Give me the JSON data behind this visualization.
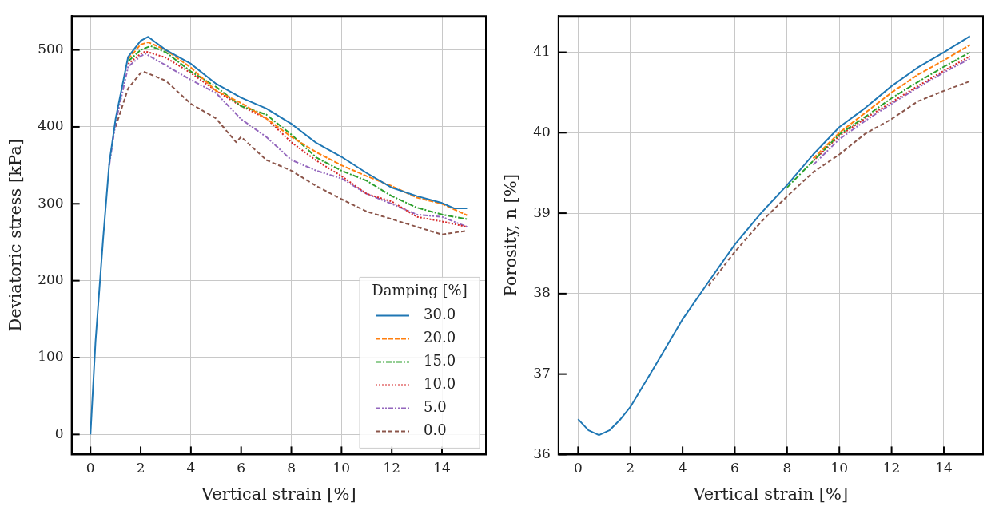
{
  "chart_data": [
    {
      "type": "line",
      "xlabel": "Vertical strain [%]",
      "ylabel": "Deviatoric stress [kPa]",
      "legend_title": "Damping [%]",
      "legend": "bottom right",
      "grid": true,
      "marker": "none",
      "xlim": [
        -0.75,
        15.75
      ],
      "ylim": [
        -26,
        544
      ],
      "xticks": [
        0,
        2,
        4,
        6,
        8,
        10,
        12,
        14
      ],
      "yticks": [
        0,
        100,
        200,
        300,
        400,
        500
      ],
      "series": [
        {
          "name": "30.0",
          "color": "#1f77b4",
          "line_style": "solid",
          "x": [
            0,
            0.2,
            0.5,
            0.75,
            1,
            1.5,
            2,
            2.3,
            3,
            4,
            5,
            6,
            7,
            8,
            9,
            10,
            11,
            12,
            13,
            14,
            14.5,
            15
          ],
          "values": [
            0,
            120,
            253,
            353,
            410,
            491,
            512,
            517,
            500,
            482,
            456,
            438,
            424,
            404,
            379,
            361,
            340,
            321,
            310,
            301,
            294,
            294
          ]
        },
        {
          "name": "20.0",
          "color": "#ff7f0e",
          "line_style": "dashed",
          "x": [
            1.5,
            2,
            2.3,
            3,
            4,
            5,
            6,
            7,
            8,
            9,
            10,
            11,
            12,
            13,
            14,
            15
          ],
          "values": [
            488,
            507,
            510,
            500,
            477,
            447,
            431,
            411,
            387,
            367,
            350,
            336,
            323,
            308,
            300,
            285
          ]
        },
        {
          "name": "15.0",
          "color": "#2ca02c",
          "line_style": "dashdot",
          "x": [
            1.5,
            2,
            2.4,
            3,
            4,
            5,
            6,
            7,
            8,
            9,
            10,
            11,
            12,
            13,
            14,
            15
          ],
          "values": [
            485,
            500,
            505,
            497,
            472,
            452,
            427,
            416,
            390,
            360,
            343,
            330,
            310,
            295,
            286,
            280
          ]
        },
        {
          "name": "10.0",
          "color": "#d62728",
          "line_style": "dotted",
          "x": [
            1.5,
            2,
            2.2,
            3,
            4,
            5,
            6,
            7,
            8,
            9,
            10,
            11,
            12,
            13,
            14,
            15
          ],
          "values": [
            482,
            495,
            498,
            490,
            470,
            447,
            427,
            411,
            380,
            356,
            336,
            313,
            303,
            283,
            277,
            270
          ]
        },
        {
          "name": "5.0",
          "color": "#9467bd",
          "line_style": "dashdotdot",
          "x": [
            0.75,
            1,
            1.5,
            2,
            2.2,
            3,
            4,
            5,
            6,
            7,
            8,
            9,
            10,
            11,
            12,
            13,
            14,
            15
          ],
          "values": [
            350,
            405,
            478,
            492,
            495,
            480,
            461,
            444,
            410,
            387,
            357,
            343,
            333,
            313,
            300,
            286,
            283,
            270
          ]
        },
        {
          "name": "0.0",
          "color": "#8c564b",
          "line_style": "loosedash",
          "x": [
            1,
            1.5,
            2,
            2.1,
            3,
            4,
            5,
            5.8,
            6,
            7,
            8,
            9,
            10,
            11,
            12,
            13,
            14,
            15
          ],
          "values": [
            400,
            450,
            470,
            472,
            460,
            430,
            411,
            380,
            387,
            357,
            343,
            323,
            306,
            290,
            280,
            270,
            260,
            265
          ]
        }
      ]
    },
    {
      "type": "line",
      "xlabel": "Vertical strain [%]",
      "ylabel": "Porosity, n [%]",
      "legend": false,
      "grid": true,
      "marker": "none",
      "xlim": [
        -0.75,
        15.5
      ],
      "ylim": [
        36,
        41.45
      ],
      "xticks": [
        0,
        2,
        4,
        6,
        8,
        10,
        12,
        14
      ],
      "yticks": [
        36,
        37,
        38,
        39,
        40,
        41
      ],
      "series": [
        {
          "color": "#1f77b4",
          "line_style": "solid",
          "x": [
            0,
            0.4,
            0.8,
            1.2,
            1.6,
            2,
            3,
            4,
            5,
            6,
            7,
            8,
            9,
            10,
            11,
            12,
            13,
            14,
            15
          ],
          "values": [
            36.44,
            36.3,
            36.24,
            36.3,
            36.43,
            36.59,
            37.13,
            37.68,
            38.15,
            38.61,
            39.0,
            39.35,
            39.73,
            40.07,
            40.31,
            40.58,
            40.81,
            41.0,
            41.2
          ]
        },
        {
          "color": "#ff7f0e",
          "line_style": "dashed",
          "x": [
            9,
            10,
            11,
            12,
            13,
            14,
            15
          ],
          "values": [
            39.68,
            40.0,
            40.25,
            40.5,
            40.72,
            40.9,
            41.09
          ]
        },
        {
          "color": "#2ca02c",
          "line_style": "dashdot",
          "x": [
            8,
            9,
            10,
            11,
            12,
            13,
            14,
            15
          ],
          "values": [
            39.32,
            39.65,
            39.98,
            40.2,
            40.43,
            40.63,
            40.82,
            41.0
          ]
        },
        {
          "color": "#d62728",
          "line_style": "dotted",
          "x": [
            9,
            10,
            11,
            12,
            13,
            14,
            15
          ],
          "values": [
            39.65,
            39.96,
            40.18,
            40.38,
            40.58,
            40.77,
            40.95
          ]
        },
        {
          "color": "#9467bd",
          "line_style": "dashdotdot",
          "x": [
            9,
            10,
            11,
            12,
            13,
            14,
            15
          ],
          "values": [
            39.6,
            39.92,
            40.15,
            40.36,
            40.56,
            40.75,
            40.92
          ]
        },
        {
          "color": "#8c564b",
          "line_style": "loosedash",
          "x": [
            5,
            6,
            7,
            8,
            9,
            10,
            11,
            12,
            13,
            14,
            15
          ],
          "values": [
            38.1,
            38.52,
            38.89,
            39.21,
            39.51,
            39.73,
            39.99,
            40.17,
            40.39,
            40.52,
            40.64
          ]
        }
      ]
    }
  ]
}
